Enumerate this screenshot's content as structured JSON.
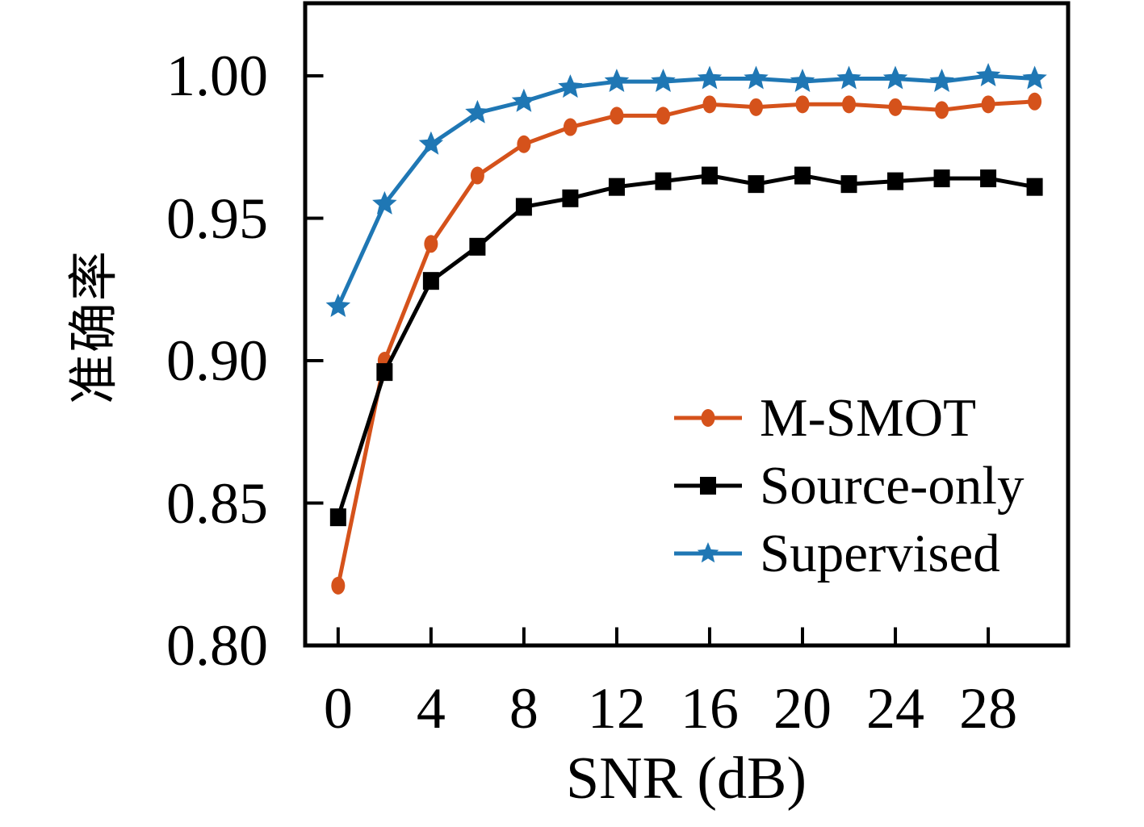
{
  "figure": {
    "background": "#ffffff",
    "axis_color": "#000000"
  },
  "chart_data": {
    "type": "line",
    "title": "",
    "xlabel": "SNR (dB)",
    "ylabel": "准确率",
    "x": [
      0,
      2,
      4,
      6,
      8,
      10,
      12,
      14,
      16,
      18,
      20,
      22,
      24,
      26,
      28,
      30
    ],
    "series": [
      {
        "name": "M-SMOT",
        "color": "#d5521b",
        "marker": "circle",
        "values": [
          0.821,
          0.9,
          0.941,
          0.965,
          0.976,
          0.982,
          0.986,
          0.986,
          0.99,
          0.989,
          0.99,
          0.99,
          0.989,
          0.988,
          0.99,
          0.991
        ]
      },
      {
        "name": "Source-only",
        "color": "#000000",
        "marker": "square",
        "values": [
          0.845,
          0.896,
          0.928,
          0.94,
          0.954,
          0.957,
          0.961,
          0.963,
          0.965,
          0.962,
          0.965,
          0.962,
          0.963,
          0.964,
          0.964,
          0.961
        ]
      },
      {
        "name": "Supervised",
        "color": "#1f77b4",
        "marker": "star",
        "values": [
          0.919,
          0.955,
          0.976,
          0.987,
          0.991,
          0.996,
          0.998,
          0.998,
          0.999,
          0.999,
          0.998,
          0.999,
          0.999,
          0.998,
          1.0,
          0.999
        ]
      }
    ],
    "xticks": [
      0,
      4,
      8,
      12,
      16,
      20,
      24,
      28
    ],
    "xtick_labels": [
      "0",
      "4",
      "8",
      "12",
      "16",
      "20",
      "24",
      "28"
    ],
    "yticks": [
      0.8,
      0.85,
      0.9,
      0.95,
      1.0
    ],
    "ytick_labels": [
      "0.80",
      "0.85",
      "0.90",
      "0.95",
      "1.00"
    ],
    "xlim": [
      -1.42,
      31.44
    ],
    "ylim": [
      0.8,
      1.0255
    ],
    "grid": false,
    "legend_position": "inside lower right",
    "legend_frame": false
  }
}
